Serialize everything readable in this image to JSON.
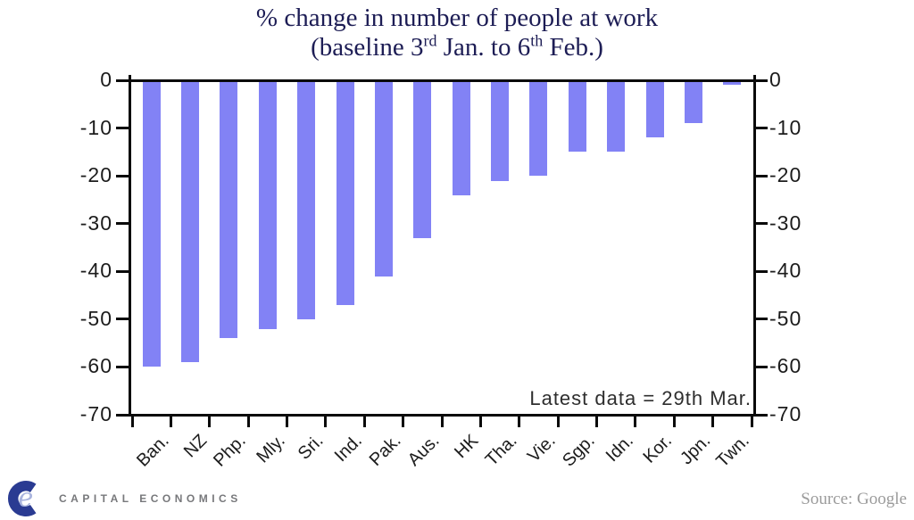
{
  "title": {
    "line1": "% change in number of people at work",
    "line2": {
      "pre": "(baseline 3",
      "sup1": "rd",
      "mid": " Jan. to 6",
      "sup2": "th",
      "post": " Feb.)"
    }
  },
  "chart_data": {
    "type": "bar",
    "title": "% change in number of people at work (baseline 3rd Jan. to 6th Feb.)",
    "categories": [
      "Ban.",
      "NZ",
      "Php.",
      "Mly.",
      "Sri.",
      "Ind.",
      "Pak.",
      "Aus.",
      "HK",
      "Tha.",
      "Vie.",
      "Sgp.",
      "Idn.",
      "Kor.",
      "Jpn.",
      "Twn."
    ],
    "values": [
      -60,
      -59,
      -54,
      -52,
      -50,
      -47,
      -41,
      -33,
      -24,
      -21,
      -20,
      -15,
      -15,
      -12,
      -9,
      -1
    ],
    "ylim": [
      -70,
      0
    ],
    "yticks": [
      0,
      -10,
      -20,
      -30,
      -40,
      -50,
      -60,
      -70
    ],
    "y_axis_sides": "both",
    "grid": false,
    "legend_position": "none",
    "annotation": "Latest data = 29th Mar."
  },
  "footer": {
    "logo_text": "CAPITAL ECONOMICS",
    "source": "Source: Google"
  },
  "colors": {
    "title": "#1d1d55",
    "bar": "#8282f5",
    "axis": "#0a0a0a",
    "logo_dark": "#2a3b92",
    "logo_light": "#a9b4de",
    "logo_text": "#77787b",
    "source_text": "#9b9b9b"
  }
}
